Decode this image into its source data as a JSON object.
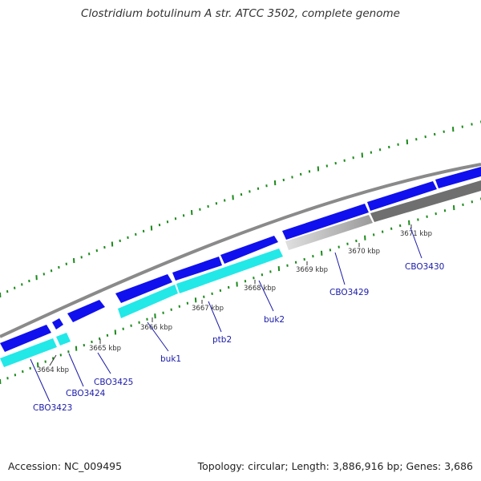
{
  "title": "Clostridium botulinum A str. ATCC 3502, complete genome",
  "footer": {
    "accession": "Accession: NC_009495",
    "stats": "Topology: circular; Length: 3,886,916 bp; Genes: 3,686"
  },
  "colors": {
    "forward_gene": "#1010ee",
    "reverse_gene": "#22e8e8",
    "grey_light": "#bdbdbd",
    "grey_dark": "#6f6f6f",
    "backbone": "#8a8a8a",
    "tick": "#1a8a1a",
    "label": "#1a1aa8"
  },
  "kbp_labels": [
    "3664 kbp",
    "3665 kbp",
    "3666 kbp",
    "3667 kbp",
    "3668 kbp",
    "3669 kbp",
    "3670 kbp",
    "3671 kbp"
  ],
  "gene_labels": [
    "CBO3423",
    "CBO3424",
    "CBO3425",
    "buk1",
    "ptb2",
    "buk2",
    "CBO3429",
    "CBO3430"
  ]
}
